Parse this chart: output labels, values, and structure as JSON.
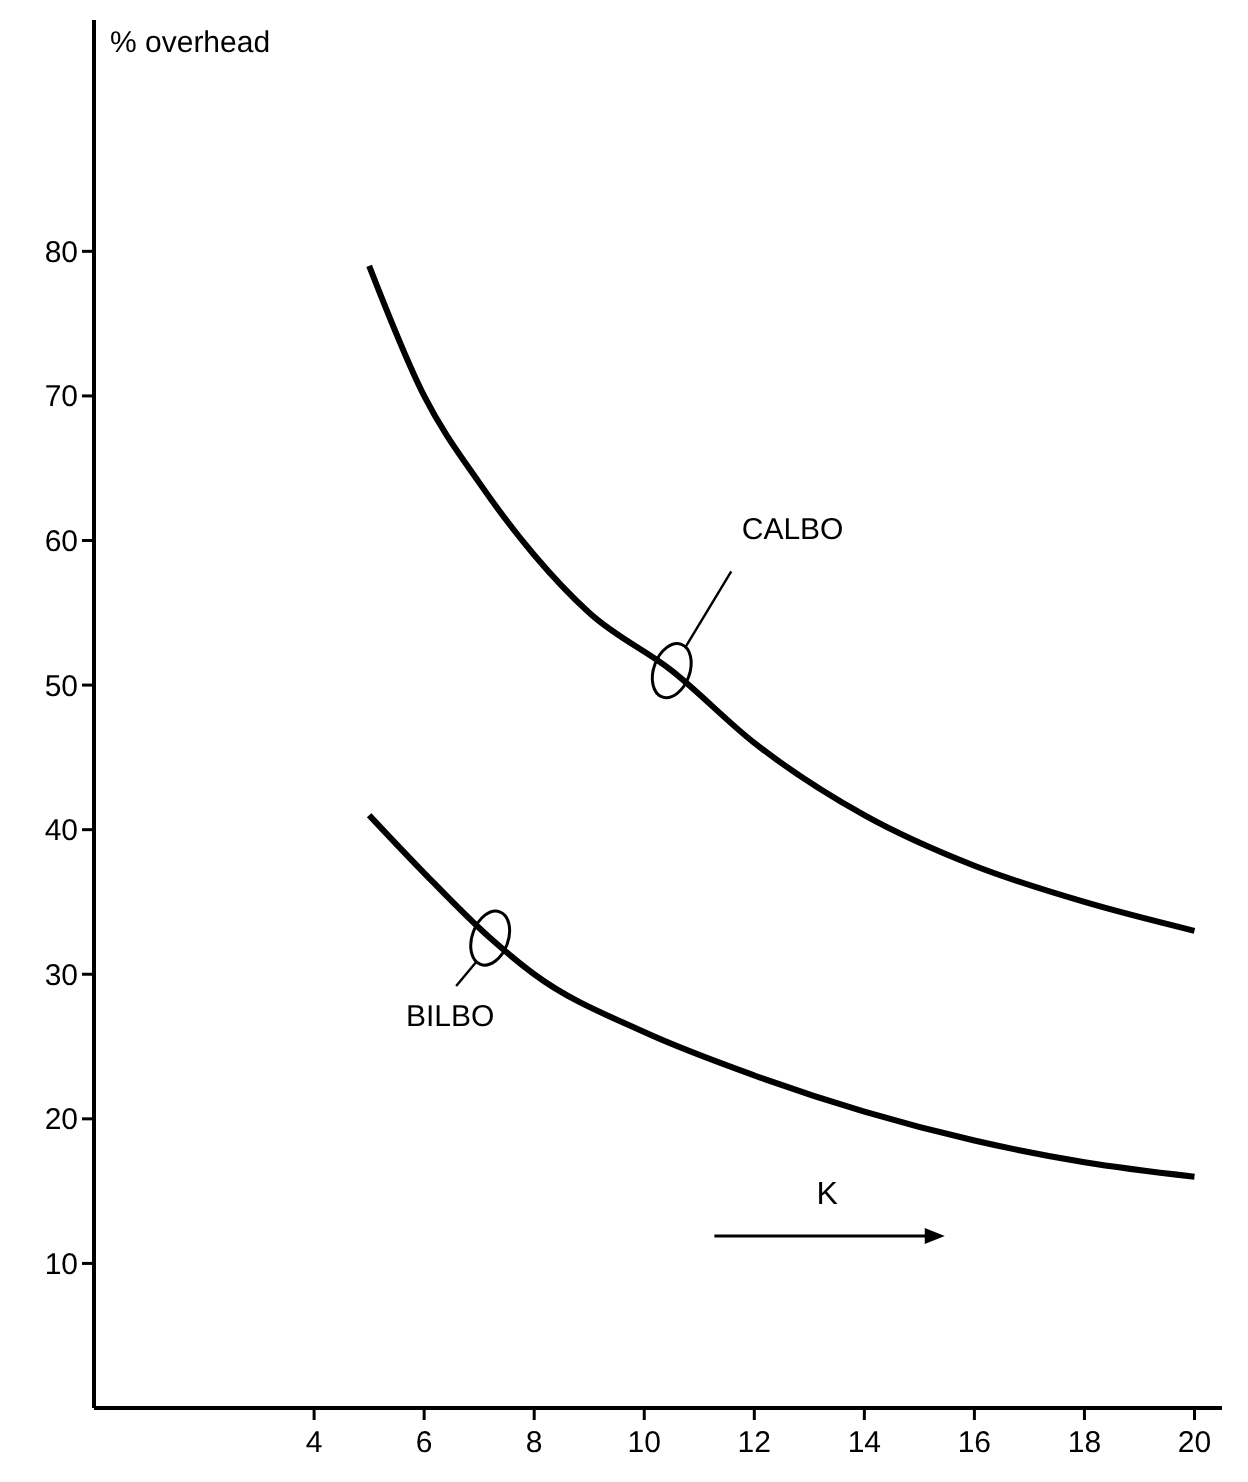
{
  "chart_data": {
    "type": "line",
    "ylabel": "% overhead",
    "xlabel": "K",
    "xlim": [
      0,
      20.5
    ],
    "ylim": [
      0,
      96
    ],
    "xticks": [
      4,
      6,
      8,
      10,
      12,
      14,
      16,
      18,
      20
    ],
    "yticks": [
      10,
      20,
      30,
      40,
      50,
      60,
      70,
      80
    ],
    "grid": false,
    "marker": "none",
    "line_style": "solid",
    "series": [
      {
        "name": "CALBO",
        "color": "#000000",
        "x": [
          5,
          6,
          7,
          8,
          9,
          10.5,
          12,
          14,
          16,
          18,
          20
        ],
        "values": [
          79,
          70,
          64,
          59,
          55,
          51,
          46,
          41,
          37.5,
          35,
          33
        ]
      },
      {
        "name": "BILBO",
        "color": "#000000",
        "x": [
          5,
          6,
          7.2,
          8,
          10,
          12,
          14,
          16,
          18,
          20
        ],
        "values": [
          41,
          37,
          32.5,
          30,
          26,
          23,
          20.5,
          18.5,
          17,
          16
        ]
      }
    ]
  }
}
